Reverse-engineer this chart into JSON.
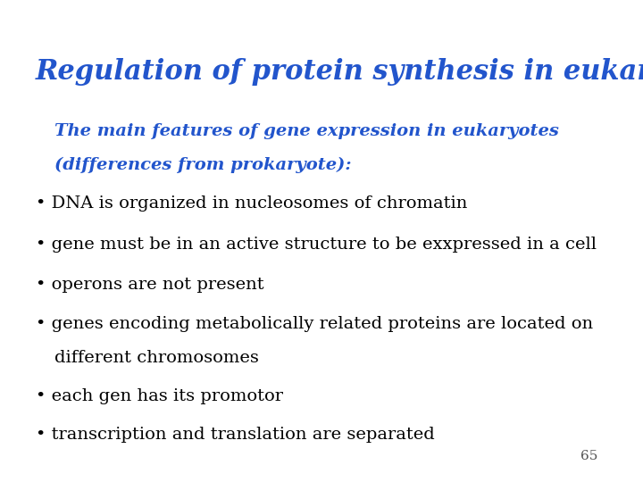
{
  "title": "Regulation of protein synthesis in eukaryotes",
  "title_color": "#2255cc",
  "title_fontsize": 22,
  "subtitle_line1": "The main features of gene expression in eukaryotes",
  "subtitle_line2": "(differences from prokaryote):",
  "subtitle_color": "#2255cc",
  "subtitle_fontsize": 14,
  "bullets": [
    "DNA is organized in nucleosomes of chromatin",
    "gene must be in an active structure to be exxpressed in a cell",
    "operons are not present",
    "genes encoding metabolically related proteins are located on",
    "different chromosomes",
    "each gen has its promotor",
    "transcription and translation are separated"
  ],
  "bullet_flags": [
    true,
    true,
    true,
    true,
    false,
    true,
    true
  ],
  "bullet_color": "#000000",
  "bullet_fontsize": 14,
  "bullet_char": "•",
  "page_number": "65",
  "page_number_color": "#555555",
  "page_number_fontsize": 11,
  "background_color": "#ffffff",
  "fig_width": 7.2,
  "fig_height": 5.4,
  "fig_dpi": 100
}
